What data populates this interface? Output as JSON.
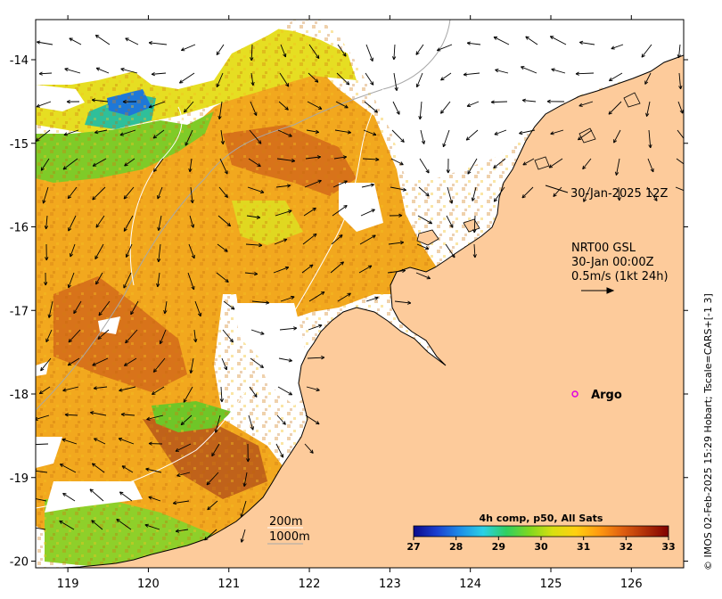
{
  "map": {
    "lon_ticks": [
      "119",
      "120",
      "121",
      "122",
      "123",
      "124",
      "125",
      "126"
    ],
    "lat_ticks": [
      "-14",
      "-15",
      "-16",
      "-17",
      "-18",
      "-19",
      "-20"
    ],
    "lon_range": [
      118.6,
      126.65
    ],
    "lat_range": [
      -20.08,
      -13.52
    ],
    "colors": {
      "land": "#FDCB9B",
      "coast": "#000000",
      "contour_200m": "#FFFFFF",
      "contour_1000m": "#A8A8A8",
      "argo": "#E000E0"
    }
  },
  "annotations": {
    "timestamp": "30-Jan-2025 12Z",
    "model_line1": "NRT00 GSL",
    "model_line2": "30-Jan 00:00Z",
    "model_line3": "0.5m/s (1kt 24h)",
    "contour_200": "200m",
    "contour_1000": "1000m"
  },
  "argo": {
    "label": "Argo",
    "lon": 125.3,
    "lat": -18.0
  },
  "colorbar": {
    "title": "4h comp, p50, All Sats",
    "ticks": [
      "27",
      "28",
      "29",
      "30",
      "31",
      "32",
      "33"
    ],
    "range": [
      27,
      33
    ],
    "colors": [
      "#0a0a8c",
      "#1a3fd0",
      "#1e8ee8",
      "#2bd0e6",
      "#2fcf60",
      "#7fd820",
      "#d8e010",
      "#ffd010",
      "#ff9a10",
      "#e06010",
      "#b03008",
      "#800000"
    ]
  },
  "credit": "© IMOS 02-Feb-2025 15:29 Hobart; Tscale=CARS+[-1 3]"
}
